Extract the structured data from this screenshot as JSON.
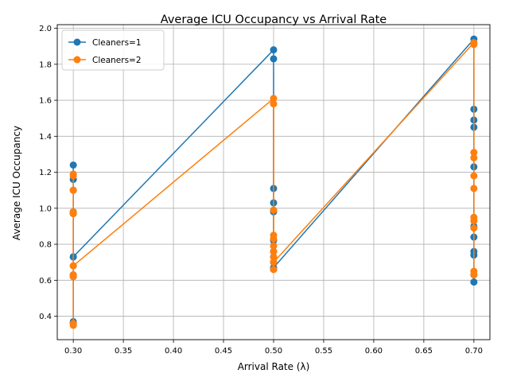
{
  "chart_data": {
    "type": "line",
    "title": "Average ICU Occupancy vs Arrival Rate",
    "xlabel": "Arrival Rate (λ)",
    "ylabel": "Average ICU Occupancy",
    "xlim": [
      0.284,
      0.716
    ],
    "ylim": [
      0.27,
      2.02
    ],
    "xticks": [
      0.3,
      0.35,
      0.4,
      0.45,
      0.5,
      0.55,
      0.6,
      0.65,
      0.7
    ],
    "xtick_labels": [
      "0.30",
      "0.35",
      "0.40",
      "0.45",
      "0.50",
      "0.55",
      "0.60",
      "0.65",
      "0.70"
    ],
    "yticks": [
      0.4,
      0.6,
      0.8,
      1.0,
      1.2,
      1.4,
      1.6,
      1.8,
      2.0
    ],
    "ytick_labels": [
      "0.4",
      "0.6",
      "0.8",
      "1.0",
      "1.2",
      "1.4",
      "1.6",
      "1.8",
      "2.0"
    ],
    "grid": true,
    "legend_position": "upper-left",
    "series": [
      {
        "name": "Cleaners=1",
        "color": "#1f77b4",
        "x": [
          0.3,
          0.3,
          0.3,
          0.3,
          0.3,
          0.3,
          0.3,
          0.3,
          0.3,
          0.3,
          0.3,
          0.5,
          0.5,
          0.5,
          0.5,
          0.5,
          0.5,
          0.5,
          0.5,
          0.5,
          0.5,
          0.5,
          0.7,
          0.7,
          0.7,
          0.7,
          0.7,
          0.7,
          0.7,
          0.7,
          0.7,
          0.7,
          0.7
        ],
        "y": [
          0.37,
          1.24,
          0.97,
          0.63,
          1.16,
          0.36,
          0.62,
          0.98,
          1.1,
          0.73,
          0.73,
          1.88,
          1.83,
          1.11,
          0.82,
          1.03,
          0.76,
          0.7,
          0.73,
          0.66,
          0.98,
          0.67,
          1.94,
          1.55,
          1.49,
          0.59,
          1.45,
          1.23,
          0.84,
          0.76,
          0.9,
          0.63,
          0.74
        ]
      },
      {
        "name": "Cleaners=2",
        "color": "#ff7f0e",
        "x": [
          0.3,
          0.3,
          0.3,
          0.3,
          0.3,
          0.3,
          0.3,
          0.3,
          0.3,
          0.3,
          0.3,
          0.5,
          0.5,
          0.5,
          0.5,
          0.5,
          0.5,
          0.5,
          0.5,
          0.5,
          0.5,
          0.5,
          0.7,
          0.7,
          0.7,
          0.7,
          0.7,
          0.7,
          0.7,
          0.7,
          0.7,
          0.7,
          0.7
        ],
        "y": [
          0.36,
          1.19,
          0.97,
          0.62,
          1.1,
          0.35,
          0.63,
          0.98,
          1.18,
          0.68,
          0.68,
          1.61,
          1.58,
          0.99,
          0.85,
          0.83,
          0.76,
          0.7,
          0.73,
          0.66,
          0.79,
          0.7,
          1.92,
          1.91,
          1.31,
          1.28,
          1.18,
          1.11,
          0.95,
          0.93,
          0.89,
          0.65,
          0.63
        ]
      }
    ]
  }
}
